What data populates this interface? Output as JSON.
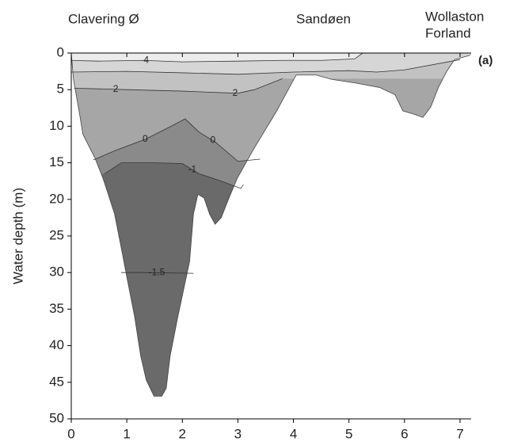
{
  "chart_data": {
    "type": "contour",
    "y_label": "Water depth (m)",
    "locations": [
      "Clavering Ø",
      "Sandøen",
      "Wollaston",
      "Forland"
    ],
    "panel_label": "(a)",
    "xlim": [
      0,
      7.2
    ],
    "xticks": [
      0,
      1,
      2,
      3,
      4,
      5,
      6,
      7
    ],
    "ylim": [
      0,
      50
    ],
    "yticks": [
      0,
      5,
      10,
      15,
      20,
      25,
      30,
      35,
      40,
      45,
      50
    ],
    "y_inverted": true,
    "bottom": {
      "x": [
        0,
        0.04,
        0.14,
        0.21,
        0.43,
        0.57,
        0.64,
        0.78,
        0.92,
        1,
        1.14,
        1.25,
        1.35,
        1.49,
        1.63,
        1.71,
        1.78,
        1.92,
        2.13,
        2.2,
        2.28,
        2.39,
        2.49,
        2.59,
        2.7,
        2.84,
        2.99,
        3.27,
        3.7,
        4.05,
        4.41,
        4.69,
        5.12,
        5.55,
        5.83,
        5.97,
        6.19,
        6.33,
        6.47,
        6.61,
        6.76,
        6.9,
        7.18
      ],
      "depth": [
        0,
        3.6,
        7.9,
        11.1,
        14.4,
        17.1,
        18.7,
        22,
        27.4,
        30.6,
        36,
        41.4,
        44.7,
        46.9,
        46.9,
        45.8,
        41.4,
        36,
        28.5,
        22,
        19.3,
        19.8,
        22,
        23.4,
        22.5,
        19.8,
        17.1,
        13.3,
        7.9,
        3,
        3,
        3.6,
        4.1,
        4.7,
        5.7,
        7.9,
        8.4,
        8.8,
        7.4,
        4.7,
        2.5,
        0.9,
        0.3
      ]
    },
    "deep_color": "#6a6a6a",
    "contours": [
      {
        "level": -1.5,
        "color": "#6a6a6a",
        "x": [
          0.9,
          1.3,
          2.2
        ],
        "depth": [
          30,
          30,
          30.1
        ]
      },
      {
        "level": -1,
        "color": "#8a8a8a",
        "x": [
          0.6,
          0.9,
          1.5,
          2.0,
          2.3,
          2.7,
          3.05,
          3.1
        ],
        "depth": [
          16.5,
          15,
          15,
          15.1,
          16.5,
          17.5,
          18.5,
          18
        ]
      },
      {
        "level": 0,
        "color": "#a6a6a6",
        "x": [
          0.4,
          0.8,
          1.33,
          1.8,
          2.05,
          2.3,
          2.6,
          3,
          3.4
        ],
        "depth": [
          14.6,
          13.3,
          11.8,
          10,
          9,
          10.8,
          12.2,
          14.8,
          14.5
        ]
      },
      {
        "level": 2,
        "color": "#c2c2c2",
        "x": [
          0.05,
          1,
          2,
          3,
          3.3,
          3.8
        ],
        "depth": [
          4.8,
          5,
          5.2,
          5.5,
          5,
          3.5
        ]
      },
      {
        "color": "#d6d6d6",
        "x": [
          0,
          1,
          2,
          3,
          4,
          5,
          5.5,
          6,
          7
        ],
        "depth": [
          2.6,
          2.5,
          2.7,
          2.9,
          2.6,
          2.4,
          2.6,
          2.3,
          0.9
        ]
      },
      {
        "level": 4,
        "color": "#ececec",
        "x": [
          0,
          0.5,
          1.3,
          2,
          3,
          3.8,
          4.5,
          5.1,
          5.25
        ],
        "depth": [
          1,
          1.1,
          1,
          1.2,
          1.1,
          1,
          1,
          0.8,
          0
        ]
      }
    ]
  }
}
